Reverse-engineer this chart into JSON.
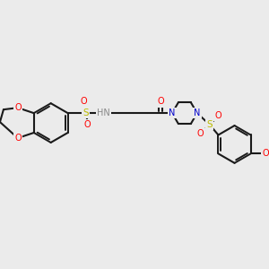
{
  "bg_color": "#ebebeb",
  "bond_color": "#1a1a1a",
  "O_color": "#ff0000",
  "N_color": "#0000cc",
  "S_color": "#bbbb00",
  "H_color": "#888888",
  "fig_w": 3.0,
  "fig_h": 3.0,
  "dpi": 100,
  "xlim": [
    0,
    300
  ],
  "ylim": [
    0,
    300
  ]
}
